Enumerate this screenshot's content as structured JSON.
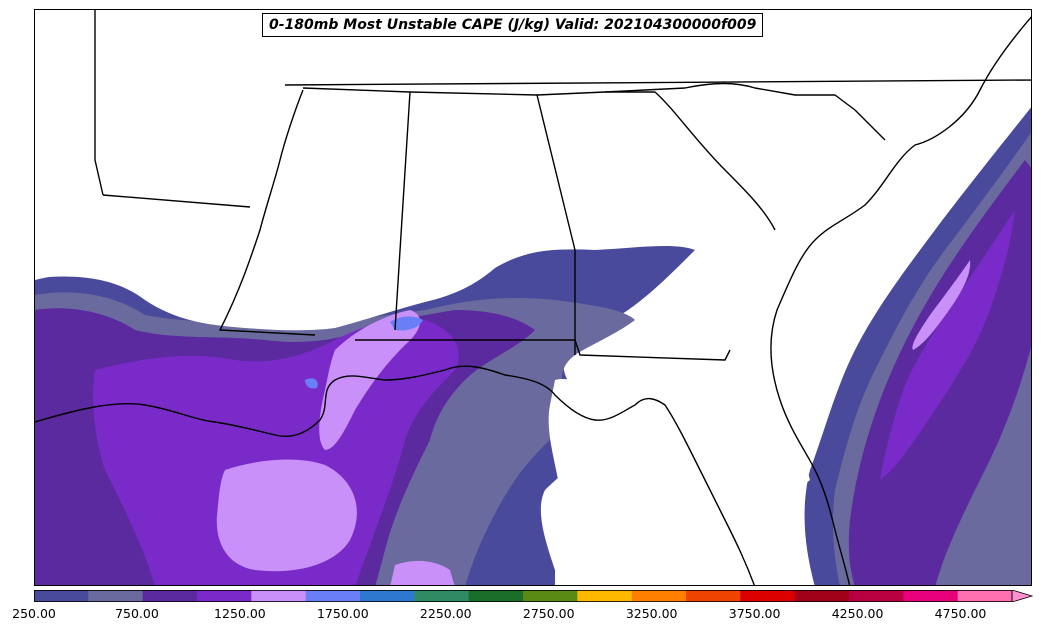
{
  "title": "0-180mb Most Unstable CAPE (J/kg) Valid: 202104300000f009",
  "colorbar": {
    "min": 250,
    "max": 5000,
    "step": 250,
    "extend": "max",
    "colors": [
      "#4a4a9c",
      "#6a6a9e",
      "#5a2a9e",
      "#7a2ac8",
      "#c890f8",
      "#6a7ef8",
      "#2f78d0",
      "#2e8b64",
      "#1a6e2a",
      "#5a8a14",
      "#ffb800",
      "#ff7f00",
      "#ee4400",
      "#dd0000",
      "#a00018",
      "#b80040",
      "#e8007a",
      "#ff70b0",
      "#ff90d0"
    ],
    "tick_labels": [
      "250.00",
      "750.00",
      "1250.00",
      "1750.00",
      "2250.00",
      "2750.00",
      "3250.00",
      "3750.00",
      "4250.00",
      "4750.00"
    ],
    "tick_values": [
      250,
      750,
      1250,
      1750,
      2250,
      2750,
      3250,
      3750,
      4250,
      4750
    ]
  }
}
